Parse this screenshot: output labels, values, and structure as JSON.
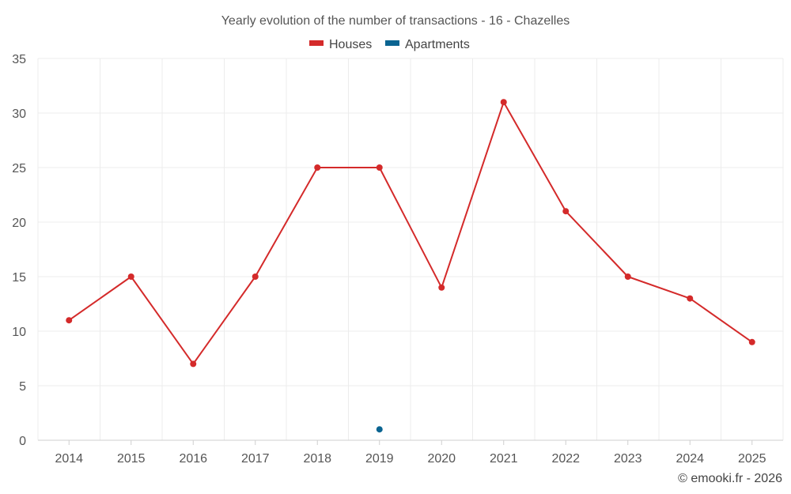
{
  "chart_data": {
    "type": "line",
    "title": "Yearly evolution of the number of transactions - 16 - Chazelles",
    "categories": [
      "2014",
      "2015",
      "2016",
      "2017",
      "2018",
      "2019",
      "2020",
      "2021",
      "2022",
      "2023",
      "2024",
      "2025"
    ],
    "series": [
      {
        "name": "Houses",
        "color": "#d42a2a",
        "values": [
          11,
          15,
          7,
          15,
          25,
          25,
          14,
          31,
          21,
          15,
          13,
          9
        ]
      },
      {
        "name": "Apartments",
        "color": "#0a6491",
        "values": [
          null,
          null,
          null,
          null,
          null,
          1,
          null,
          null,
          null,
          null,
          null,
          null
        ]
      }
    ],
    "ylim": [
      0,
      35
    ],
    "yticks": [
      "0",
      "5",
      "10",
      "15",
      "20",
      "25",
      "30",
      "35"
    ],
    "grid": true,
    "legend_position": "top-center",
    "xlabel": "",
    "ylabel": ""
  },
  "credit": "© emooki.fr - 2026"
}
